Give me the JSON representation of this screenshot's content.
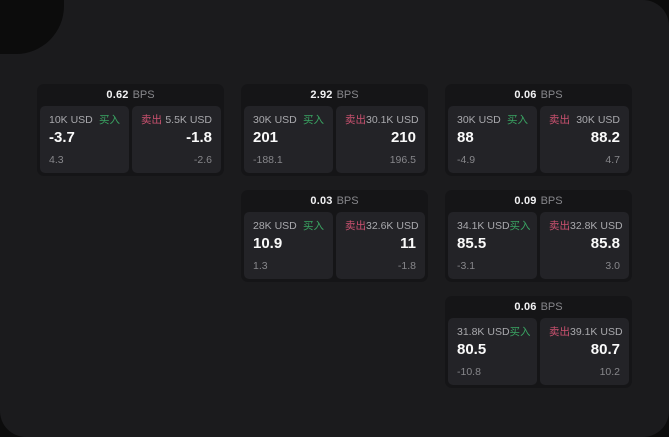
{
  "labels": {
    "buy": "买入",
    "sell": "卖出",
    "bps_unit": "BPS"
  },
  "colors": {
    "buy": "#3aa563",
    "sell": "#cc5270",
    "window_bg": "#1b1b1d",
    "card_bg": "#151517",
    "panel_bg": "#232327"
  },
  "cards": [
    {
      "col": 1,
      "row": 1,
      "bps": "0.62",
      "buy": {
        "size": "10K USD",
        "price": "-3.7",
        "delta": "4.3"
      },
      "sell": {
        "size": "5.5K USD",
        "price": "-1.8",
        "delta": "-2.6"
      }
    },
    {
      "col": 2,
      "row": 1,
      "bps": "2.92",
      "buy": {
        "size": "30K USD",
        "price": "201",
        "delta": "-188.1"
      },
      "sell": {
        "size": "30.1K USD",
        "price": "210",
        "delta": "196.5"
      }
    },
    {
      "col": 3,
      "row": 1,
      "bps": "0.06",
      "buy": {
        "size": "30K USD",
        "price": "88",
        "delta": "-4.9"
      },
      "sell": {
        "size": "30K USD",
        "price": "88.2",
        "delta": "4.7"
      }
    },
    {
      "col": 2,
      "row": 2,
      "bps": "0.03",
      "buy": {
        "size": "28K USD",
        "price": "10.9",
        "delta": "1.3"
      },
      "sell": {
        "size": "32.6K USD",
        "price": "11",
        "delta": "-1.8"
      }
    },
    {
      "col": 3,
      "row": 2,
      "bps": "0.09",
      "buy": {
        "size": "34.1K USD",
        "price": "85.5",
        "delta": "-3.1"
      },
      "sell": {
        "size": "32.8K USD",
        "price": "85.8",
        "delta": "3.0"
      }
    },
    {
      "col": 3,
      "row": 3,
      "bps": "0.06",
      "buy": {
        "size": "31.8K USD",
        "price": "80.5",
        "delta": "-10.8"
      },
      "sell": {
        "size": "39.1K USD",
        "price": "80.7",
        "delta": "10.2"
      }
    }
  ]
}
